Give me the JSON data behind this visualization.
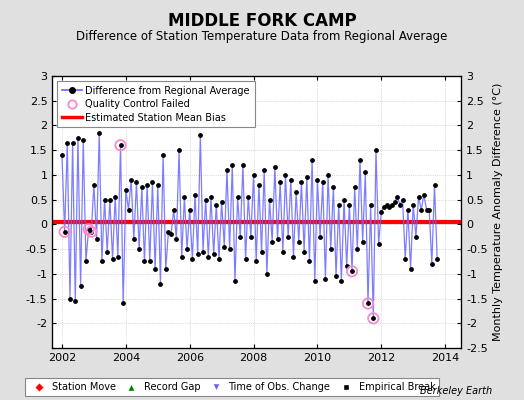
{
  "title": "MIDDLE FORK CAMP",
  "subtitle": "Difference of Station Temperature Data from Regional Average",
  "ylabel": "Monthly Temperature Anomaly Difference (°C)",
  "xlim": [
    2001.7,
    2014.5
  ],
  "ylim": [
    -2.5,
    3.0
  ],
  "yticks": [
    -2.5,
    -2,
    -1.5,
    -1,
    -0.5,
    0,
    0.5,
    1,
    1.5,
    2,
    2.5,
    3
  ],
  "xticks": [
    2002,
    2004,
    2006,
    2008,
    2010,
    2012,
    2014
  ],
  "bias_value": 0.05,
  "background_color": "#e0e0e0",
  "plot_bg_color": "#ffffff",
  "line_color": "#6666ff",
  "dot_color": "#000066",
  "bias_color": "#ff0000",
  "qc_color": "#ff88cc",
  "watermark": "Berkeley Earth",
  "time_series": [
    1.4,
    -0.15,
    1.65,
    -1.5,
    1.65,
    -1.55,
    1.75,
    -1.25,
    1.7,
    -0.75,
    -0.1,
    -0.15,
    0.8,
    -0.3,
    1.85,
    -0.75,
    0.5,
    -0.55,
    0.5,
    -0.7,
    0.55,
    -0.65,
    1.6,
    -1.6,
    0.7,
    0.3,
    0.9,
    -0.3,
    0.85,
    -0.5,
    0.75,
    -0.75,
    0.8,
    -0.75,
    0.85,
    -0.9,
    0.8,
    -1.2,
    1.4,
    -0.9,
    -0.15,
    -0.2,
    0.3,
    -0.3,
    1.5,
    -0.65,
    0.55,
    -0.5,
    0.3,
    -0.7,
    0.6,
    -0.6,
    1.8,
    -0.55,
    0.5,
    -0.65,
    0.55,
    -0.6,
    0.4,
    -0.7,
    0.45,
    -0.45,
    1.1,
    -0.5,
    1.2,
    -1.15,
    0.55,
    -0.25,
    1.2,
    -0.7,
    0.55,
    -0.25,
    1.0,
    -0.75,
    0.8,
    -0.55,
    1.1,
    -1.0,
    0.5,
    -0.35,
    1.15,
    -0.3,
    0.85,
    -0.55,
    1.0,
    -0.25,
    0.9,
    -0.65,
    0.65,
    -0.35,
    0.85,
    -0.55,
    0.95,
    -0.75,
    1.3,
    -1.15,
    0.9,
    -0.25,
    0.85,
    -1.1,
    1.0,
    -0.5,
    0.75,
    -1.05,
    0.4,
    -1.15,
    0.5,
    -0.85,
    0.4,
    -0.95,
    0.75,
    -0.5,
    1.3,
    -0.35,
    1.05,
    -1.6,
    0.4,
    -1.9,
    1.5,
    -0.4,
    0.25,
    0.35,
    0.4,
    0.35,
    0.4,
    0.45,
    0.55,
    0.4,
    0.5,
    -0.7,
    0.3,
    -0.9,
    0.4,
    -0.25,
    0.55,
    0.3,
    0.6,
    0.3,
    0.3,
    -0.8,
    0.8,
    -0.7
  ],
  "qc_failed_indices": [
    1,
    10,
    11,
    22,
    109,
    115,
    117
  ],
  "title_fontsize": 12,
  "subtitle_fontsize": 8.5,
  "tick_fontsize": 8,
  "ylabel_fontsize": 8
}
